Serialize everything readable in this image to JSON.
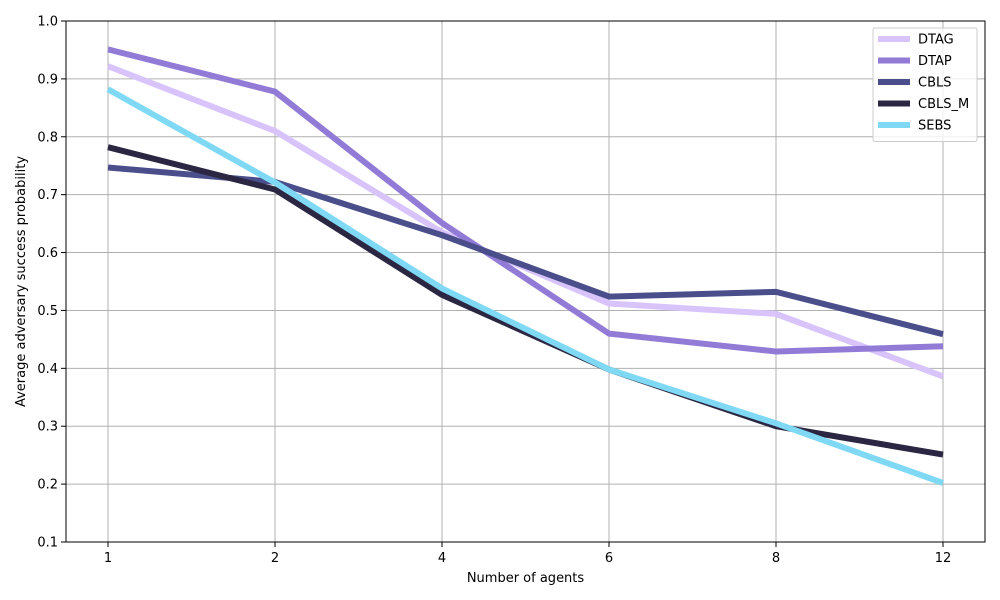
{
  "chart_data": {
    "type": "line",
    "title": "",
    "xlabel": "Number of agents",
    "ylabel": "Average adversary success probability",
    "categories": [
      "1",
      "2",
      "4",
      "6",
      "8",
      "12"
    ],
    "ylim": [
      0.1,
      1.0
    ],
    "yticks": [
      "0.1",
      "0.2",
      "0.3",
      "0.4",
      "0.5",
      "0.6",
      "0.7",
      "0.8",
      "0.9",
      "1.0"
    ],
    "grid": true,
    "legend_position": "top-right",
    "series": [
      {
        "name": "DTAG",
        "color": "#d8c3fb",
        "values": [
          0.922,
          0.81,
          0.635,
          0.512,
          0.494,
          0.386
        ]
      },
      {
        "name": "DTAP",
        "color": "#927bd6",
        "values": [
          0.951,
          0.878,
          0.651,
          0.46,
          0.429,
          0.438
        ]
      },
      {
        "name": "CBLS",
        "color": "#4a4f8b",
        "values": [
          0.747,
          0.722,
          0.63,
          0.524,
          0.532,
          0.459
        ]
      },
      {
        "name": "CBLS_M",
        "color": "#2b2743",
        "values": [
          0.782,
          0.709,
          0.527,
          0.398,
          0.3,
          0.251
        ]
      },
      {
        "name": "SEBS",
        "color": "#7fd9f4",
        "values": [
          0.882,
          0.721,
          0.538,
          0.398,
          0.305,
          0.202
        ]
      }
    ]
  }
}
